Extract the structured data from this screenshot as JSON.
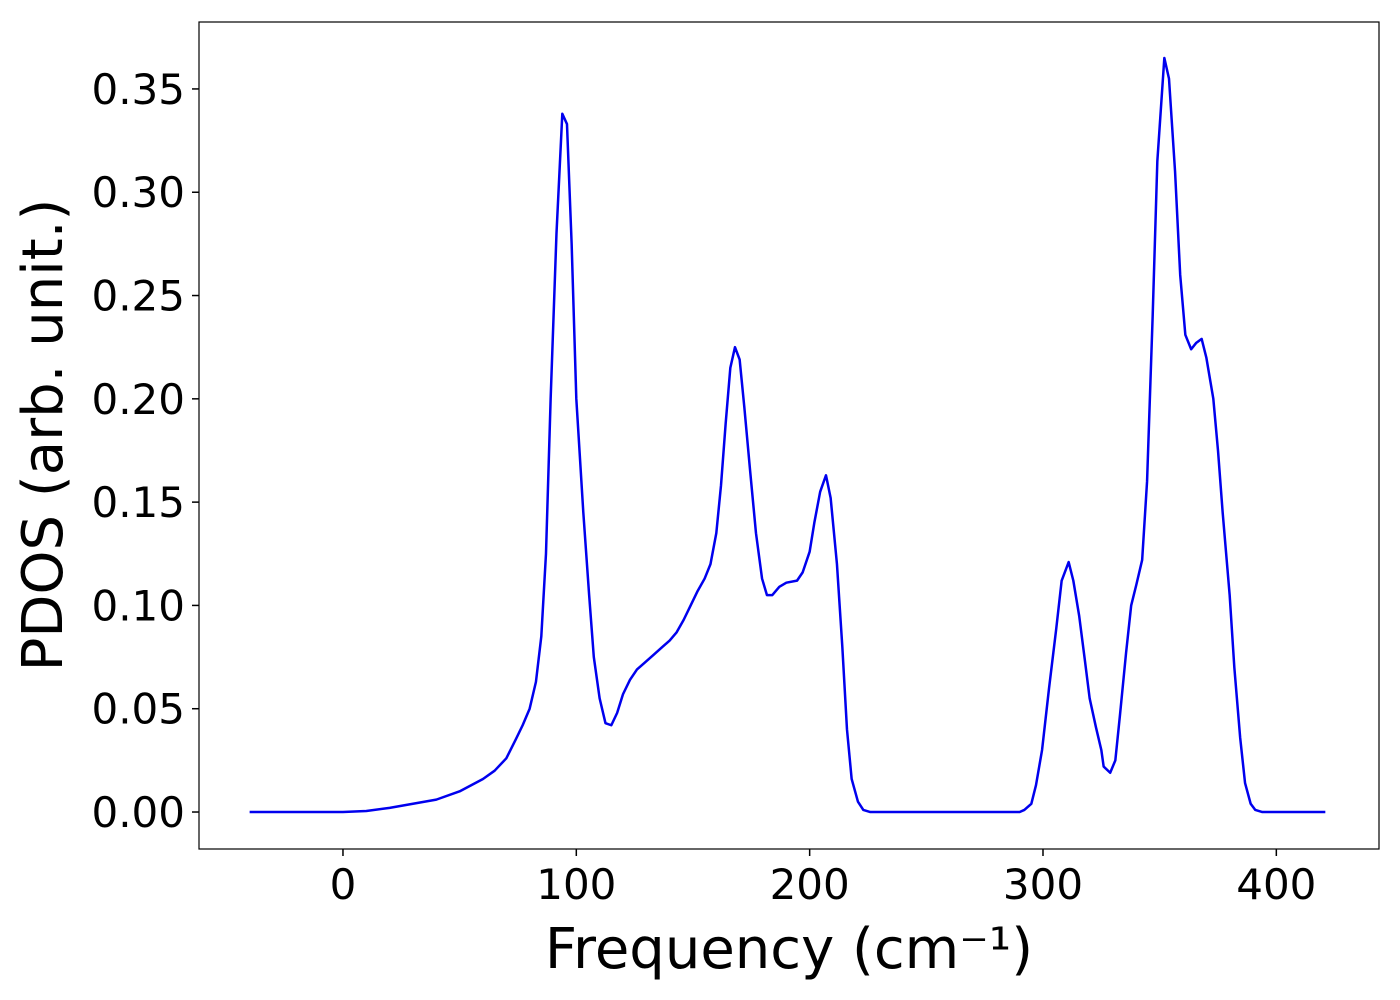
{
  "chart_data": {
    "type": "line",
    "xlabel": "Frequency (cm⁻¹)",
    "ylabel": "PDOS (arb. unit.)",
    "x": [
      -40,
      -20,
      0,
      10,
      20,
      30,
      40,
      50,
      60,
      65,
      70,
      74,
      77,
      80,
      82.7,
      85,
      87,
      89,
      91.5,
      94,
      96,
      98,
      100,
      103,
      105.5,
      107.5,
      110,
      112.5,
      115,
      117.5,
      120,
      123,
      126,
      129,
      133,
      137,
      140,
      143,
      146,
      149,
      152,
      155,
      157.5,
      160,
      162,
      164,
      166,
      168,
      170,
      172,
      174.5,
      177,
      179.6,
      181.7,
      184,
      187,
      190,
      194.6,
      197,
      200,
      202,
      204.5,
      207,
      209,
      211.7,
      214,
      216,
      218,
      220.7,
      223,
      226,
      250,
      290,
      292,
      295,
      297,
      299.6,
      302.6,
      305.6,
      308,
      311,
      313,
      315.5,
      318,
      320,
      322.7,
      325,
      326,
      328.8,
      331,
      333,
      335.6,
      337.8,
      340,
      342.5,
      344.6,
      347,
      349,
      352,
      354,
      356.6,
      358.8,
      361,
      363.5,
      365.6,
      368,
      370,
      373,
      375,
      377,
      380,
      382,
      384.5,
      386.6,
      389,
      391,
      394,
      421
    ],
    "series": [
      {
        "name": "PDOS",
        "color": "#0000ee",
        "values": [
          0,
          0,
          0,
          0.0005,
          0.002,
          0.004,
          0.006,
          0.01,
          0.016,
          0.02,
          0.026,
          0.035,
          0.042,
          0.05,
          0.063,
          0.085,
          0.125,
          0.2,
          0.28,
          0.338,
          0.333,
          0.275,
          0.2,
          0.145,
          0.105,
          0.075,
          0.055,
          0.043,
          0.042,
          0.048,
          0.057,
          0.064,
          0.069,
          0.072,
          0.076,
          0.08,
          0.083,
          0.087,
          0.093,
          0.1,
          0.107,
          0.113,
          0.12,
          0.135,
          0.158,
          0.188,
          0.215,
          0.225,
          0.219,
          0.196,
          0.165,
          0.135,
          0.113,
          0.105,
          0.105,
          0.109,
          0.111,
          0.112,
          0.116,
          0.126,
          0.14,
          0.155,
          0.163,
          0.152,
          0.12,
          0.08,
          0.04,
          0.016,
          0.005,
          0.001,
          0,
          0,
          0,
          0.001,
          0.004,
          0.013,
          0.03,
          0.06,
          0.088,
          0.112,
          0.121,
          0.112,
          0.095,
          0.073,
          0.055,
          0.041,
          0.03,
          0.022,
          0.019,
          0.025,
          0.047,
          0.077,
          0.1,
          0.11,
          0.122,
          0.16,
          0.24,
          0.315,
          0.365,
          0.355,
          0.31,
          0.26,
          0.231,
          0.224,
          0.227,
          0.229,
          0.22,
          0.2,
          0.175,
          0.145,
          0.105,
          0.07,
          0.036,
          0.014,
          0.004,
          0.001,
          0,
          0
        ]
      }
    ],
    "xlim": [
      -61.7,
      444
    ],
    "ylim": [
      -0.0179,
      0.3824
    ],
    "xticks": [
      0,
      100,
      200,
      300,
      400
    ],
    "yticks": [
      {
        "value": 0,
        "label": "0.00"
      },
      {
        "value": 0.05,
        "label": "0.05"
      },
      {
        "value": 0.1,
        "label": "0.10"
      },
      {
        "value": 0.15,
        "label": "0.15"
      },
      {
        "value": 0.2,
        "label": "0.20"
      },
      {
        "value": 0.25,
        "label": "0.25"
      },
      {
        "value": 0.3,
        "label": "0.30"
      },
      {
        "value": 0.35,
        "label": "0.35"
      }
    ],
    "grid": false
  }
}
